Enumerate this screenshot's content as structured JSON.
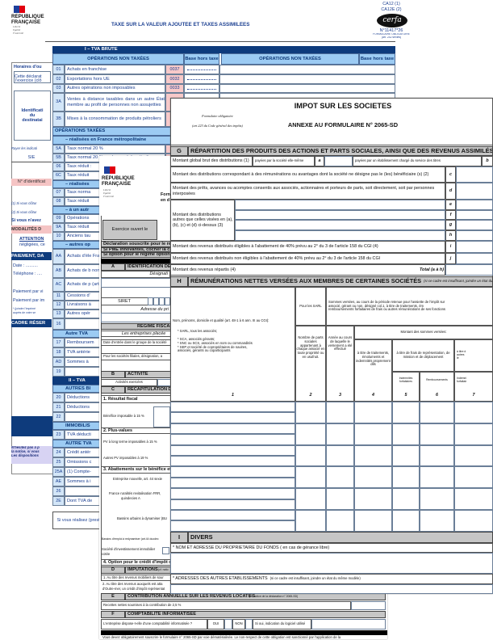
{
  "tva": {
    "logo": {
      "name1": "RÉPUBLIQUE",
      "name2": "FRANÇAISE",
      "motto": [
        "Liberté",
        "Égalité",
        "Fraternité"
      ]
    },
    "title": "TAXE SUR LA VALEUR AJOUTÉE ET TAXES ASSIMILÉES",
    "form_code_1": "CA12 (1)",
    "form_code_2": "CA12E (2)",
    "cerfa": "cerfa",
    "cerfa_number": "N°11417*26",
    "mandatory": "FORMULAIRE OBLIGATOIRE",
    "article": "(art. 242 sexies)",
    "section": "I – TVA BRUTE",
    "header": {
      "ops_left": "OPÉRATIONS NON TAXÉES",
      "base_left": "Base hors taxe",
      "ops_right": "OPÉRATIONS NON TAXÉES",
      "base_right": "Base hors taxe"
    },
    "row_04": {
      "code": "04",
      "label": "Livraisons intracommunautaires à destination d'une personne assujettie",
      "box": "0034"
    },
    "rows": [
      {
        "code": "01",
        "label": "Achats en franchise",
        "box": "0037"
      },
      {
        "code": "02",
        "label": "Exportations hors UE",
        "box": "0032"
      },
      {
        "code": "03",
        "label": "Autres opérations non imposables",
        "box": "0033"
      },
      {
        "code": "3A",
        "label": "Ventes à distance taxables dans un autre État membre au profit de personnes non assujetties"
      },
      {
        "code": "3B",
        "label": "Mises à la consommation de produits pétroliers"
      },
      {
        "band": "OPÉRATIONS TAXÉES"
      },
      {
        "band": "– réalisées en France métropolitaine"
      },
      {
        "code": "5A",
        "label": "Taux normal 20 %"
      },
      {
        "code": "5B",
        "label": "Taux normal 20 % sur les produits pétroliers"
      },
      {
        "code": "06",
        "label": "Taux réduit :"
      },
      {
        "code": "6C",
        "label": "Taux réduit"
      },
      {
        "band": "– réalisées"
      },
      {
        "code": "07",
        "label": "Taux norma"
      },
      {
        "code": "08",
        "label": "Taux réduit"
      },
      {
        "band": "– à un autr"
      },
      {
        "code": "09",
        "label": "Opérations"
      },
      {
        "code": "9A",
        "label": "Taux réduit"
      },
      {
        "code": "10",
        "label": "Anciens tau"
      },
      {
        "band": "– autres op"
      },
      {
        "code": "AA",
        "label": "Achats d'éle\nFrance"
      },
      {
        "code": "AB",
        "label": "Achats de b\nnon établi e"
      },
      {
        "code": "AC",
        "label": "Achats de p\n(article 283-"
      },
      {
        "code": "11",
        "label": "Cessions d'"
      },
      {
        "code": "12",
        "label": "Livraisons à"
      },
      {
        "code": "13",
        "label": "Autres opér"
      },
      {
        "code": "16",
        "total": "T"
      },
      {
        "band": "Autre TVA"
      },
      {
        "code": "17",
        "label": "Remboursem"
      },
      {
        "code": "18",
        "label": "TVA antérie"
      },
      {
        "code": "AD",
        "label": "Sommes à"
      },
      {
        "code": "19",
        "total": "T"
      },
      {
        "dark": "II – TVA"
      },
      {
        "band": "AUTRES BI"
      },
      {
        "code": "20",
        "label": "Déductions"
      },
      {
        "code": "21",
        "label": "Déductions"
      },
      {
        "code": "22",
        "total": "T"
      },
      {
        "band": "IMMOBILIS"
      },
      {
        "code": "23",
        "label": "TVA déducti"
      },
      {
        "band": "AUTRE TVA"
      },
      {
        "code": "24",
        "label": "Crédit antér"
      },
      {
        "code": "25",
        "label": "Omissions c"
      },
      {
        "code": "25A",
        "label": "(1) Compte-"
      },
      {
        "code": "AE",
        "label": "Sommes à i"
      },
      {
        "code": "26",
        "total": "T"
      },
      {
        "code": "2E",
        "label": "Dont TVA de"
      }
    ],
    "sidebar": {
      "hours": "Horaires d'ou",
      "declaration_1": "Cette déclarat",
      "declaration_2": "l'exercice (clô",
      "recipient": "Identificati\ndu\ndestinatai",
      "strike_note": "Rayer les indicati",
      "sie": "SIE",
      "id_number": "N° d'identificat",
      "note_1": "(1) Si vous clôtur",
      "note_2": "(2) Si vous clôtur",
      "no_activity": "Si vous n'avez",
      "modalities": "MODALITÉS D",
      "attention": "ATTENTION",
      "attention_2": "négligées, ce",
      "payment": "PAIEMENT, DA",
      "date": "Date : ..........",
      "phone": "Téléphone : ....",
      "pay_1": "Paiement par vi",
      "pay_2": "Paiement par im",
      "join_1": "* (joindre l'imprimé",
      "join_2": "auprès de votre se",
      "reserved": "CADRE RÉSER",
      "help": "N'hésitez pas à p\nla notice, si vous\nLes dispositions"
    },
    "bottom_box": "Si vous réalisez\n(prestati"
  },
  "is_form": {
    "logo": {
      "name1": "RÉPUBLIQUE",
      "name2": "FRANÇAISE",
      "motto": [
        "Liberté",
        "Égalité",
        "Fraternité"
      ]
    },
    "form_frag": "Forn",
    "form_frag_2": "en d",
    "exercise": "Exercice ouvert le",
    "declaration": "Déclaration souscrite pour le résultat d",
    "pme": "Si PME innovantes, cocher la case ci-c",
    "option": "Si option pour le régime optionnel de t",
    "section_a": {
      "letter": "A",
      "title": "IDENTIFICATION DE L"
    },
    "designation": "Désignati",
    "siret": "SIRET",
    "address": "Adresse du pri",
    "regime": "RÉGIME FISCAL DES",
    "groups": "Les entreprises placée",
    "entry_date": "Date d'entrée dans le groupe de la société",
    "subsidiaries": "Pour les sociétés filiales, désignation, a",
    "section_b": {
      "letter": "B",
      "title": "ACTIVITÉ"
    },
    "activities": "Activités exercées",
    "section_c": {
      "letter": "C",
      "title": "RÉCAPITULATION DE"
    },
    "c1": "1. Résultat fiscal",
    "profit": "Bénéfice imposable à 15 %",
    "c2": "2. Plus-values",
    "pv_long": "PV à long terme imposables à 15 %",
    "pv_other": "Autres PV imposables à 19 %",
    "c3": "3. Abattements sur le bénéfice et exon",
    "new_company": "Entreprise nouvelle, art. 44 sexie",
    "frr_1": "France ruralités revitalisation FRR,",
    "frr_2": "quindecies A",
    "bud": "Bassins urbains à dynamiser (BU",
    "employment": "Bassins d'emploi à redynamiser (art.44 duodec",
    "siic_1": "Société d'investissement immobilier",
    "siic_2": "cotée",
    "c4": "4. Option pour le crédit d'impôt outre-m",
    "section_d": {
      "letter": "D",
      "title": "IMPUTATIONS",
      "note": "(cf. notic"
    },
    "d1": "1. Au titre des revenus mobiliers de sour",
    "d2_1": "2. Au titre des revenus auxquels est atta",
    "d2_2": "d'Outre-mer, un crédit d'impôt représentat",
    "section_e": {
      "letter": "E",
      "title": "CONTRIBUTION ANNUELLE SUR LES REVENUS LOCATIFS",
      "note": "(cf. notice de la déclaration n° 2065-SD)"
    },
    "rental": "Recettes nettes soumises à la contribution de 2,5 %",
    "section_f": {
      "letter": "F",
      "title": "COMPTABILITÉ INFORMATISÉE"
    },
    "computerized": "L'entreprise dispose-t-elle d'une comptabilité informatisée ?",
    "yes": "OUI",
    "no": "NON",
    "software": "Si oui, indication du logiciel utilisé",
    "footer": "Vous devez obligatoirement souscrire le formulaire n° 2065-SD par voie dématérialisée. Le non-respect de cette obligation est sanctionné par l'application de la"
  },
  "annex": {
    "title": "IMPOT SUR LES SOCIETES",
    "mandatory": "Formulaire obligatoire",
    "article": "(art 223 du Code général des impôts)",
    "subtitle": "ANNEXE AU FORMULAIRE N° 2065-SD",
    "section_g": {
      "letter": "G",
      "title": "RÉPARTITION DES PRODUITS DES ACTIONS ET PARTS SOCIALES, AINSI QUE DES REVENUS ASSIMILÉS DISTRIBUÉS"
    },
    "g_global": "Montant global brut des distributions (1)",
    "g_paid_self": "payées par la société elle-même",
    "g_a": "a",
    "g_paid_other": "payées par un établissement chargé du service des titres",
    "g_b": "b",
    "g_c": "Montant des distributions correspondant à des rémunérations ou avantages dont la société ne désigne pas le (les) bénéficiaire (s) (2)",
    "g_d": "Montant des prêts, avances ou acomptes consentis aux associés, actionnaires et porteurs de parts, soit directement, soit par personnes interposées",
    "g_other": "Montant des distributions autres que celles visées en (a), (b), (c) et (d) ci-dessus (3)",
    "g_i": "Montant des revenus distribués éligibles à l'abattement de 40% prévu au 2° du 3 de l'article 158 du CGI (4)",
    "g_j": "Montant des revenus distribués non éligibles à l'abattement de 40% prévu au 2° du 3 de l'article 158 du CGI",
    "g_total_label": "Montant des revenus répartis (4)",
    "g_total": "Total (a à h)",
    "letters": [
      "c",
      "d",
      "e",
      "f",
      "g",
      "h",
      "i",
      "j"
    ],
    "section_h": {
      "letter": "H",
      "title": "RÉMUNÉRATIONS NETTES VERSÉES AUX MEMBRES DE CERTAINES SOCIÉTÉS",
      "note": "(si ce cadre est insuffisant, joindre un état du m"
    },
    "h_col1": "Nom, prénoms, domicile et qualité (art. 48-1 à 6 ann. III au CGI):",
    "h_col1_b1": "* SARL, tous les associés;",
    "h_col1_b2": "* SCA, associés gérants;\n* SNC ou SCS, associés en nom ou commandités\n* SEP et société de copropriétaires de navires,\n  associés,  gérants ou coparticipants",
    "h_sarl": "Pour les SARL",
    "h_sums": "Sommes versées, au cours de la période retenue pour l'assiette de l'impôt sur\nassocié, gérant ou non, désigné col.1, à titre de traitements, ém\nremboursements forfaitaires de frais ou autres rémunérations de ses fonctions",
    "h_col2": "Nombre de parts sociales appartenant à chaque associé en toute propriété ou en usufruit.",
    "h_col3": "Année au cours de laquelle le versement a été effectué",
    "h_amount": "Montant des sommes versées:",
    "h_col4": "à titre de traitements, émoluments et indemnités proprement dits",
    "h_col56": "à titre de frais de représentation, de mission et de déplacement",
    "h_col5": "Indemnités forfaitaires",
    "h_col6": "Remboursements",
    "h_col7_top": "à titre d\nautres\nle",
    "h_col7": "Indemni\nforfaitair",
    "col_numbers": [
      "1",
      "2",
      "3",
      "4",
      "5",
      "6",
      "7"
    ],
    "section_i": {
      "letter": "I",
      "title": "DIVERS"
    },
    "owner": "* NOM ET ADRESSE DU PROPRIETAIRE DU FONDS ( en cas de gérance libre)",
    "other_addresses": "* ADRESSES DES AUTRES ETABLISSEMENTS",
    "other_addresses_note": "(si ce cadre est insuffisant, joindre un état du même modèle)"
  },
  "colors": {
    "tva_dark_blue": "#0e3b7c",
    "tva_light_blue": "#9ccbf3",
    "tva_code_cell": "#d3e6f8",
    "tva_box_pink": "#f7c9c9",
    "annex_grey_band": "#c6c6c6"
  }
}
